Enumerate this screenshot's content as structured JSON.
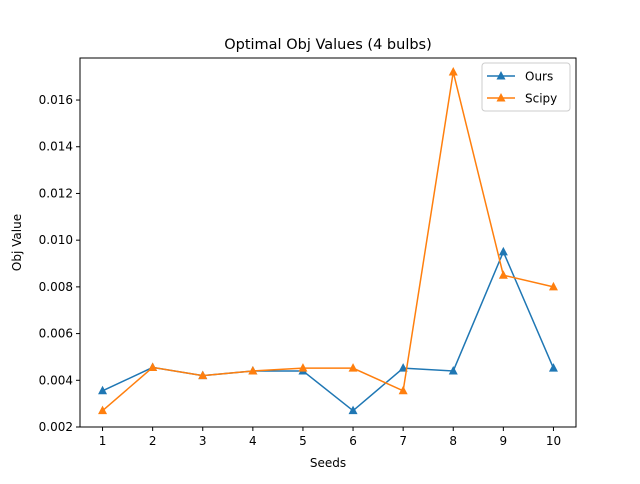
{
  "chart_data": {
    "type": "line",
    "title": "Optimal Obj Values (4 bulbs)",
    "xlabel": "Seeds",
    "ylabel": "Obj Value",
    "x": [
      1,
      2,
      3,
      4,
      5,
      6,
      7,
      8,
      9,
      10
    ],
    "xlim": [
      0.55,
      10.45
    ],
    "ylim": [
      0.002,
      0.0178
    ],
    "yticks": [
      0.002,
      0.004,
      0.006,
      0.008,
      0.01,
      0.012,
      0.014,
      0.016
    ],
    "ytick_labels": [
      "0.002",
      "0.004",
      "0.006",
      "0.008",
      "0.010",
      "0.012",
      "0.014",
      "0.016"
    ],
    "xtick_labels": [
      "1",
      "2",
      "3",
      "4",
      "5",
      "6",
      "7",
      "8",
      "9",
      "10"
    ],
    "grid": false,
    "legend_position": "top-right",
    "marker": "triangle-up",
    "series": [
      {
        "name": "Ours",
        "color": "#1f77b4",
        "values": [
          0.00355,
          0.00455,
          0.0042,
          0.0044,
          0.0044,
          0.0027,
          0.00452,
          0.0044,
          0.0095,
          0.00452
        ]
      },
      {
        "name": "Scipy",
        "color": "#ff7f0e",
        "values": [
          0.0027,
          0.00455,
          0.0042,
          0.0044,
          0.00452,
          0.00452,
          0.00355,
          0.0172,
          0.0085,
          0.008
        ]
      }
    ]
  }
}
